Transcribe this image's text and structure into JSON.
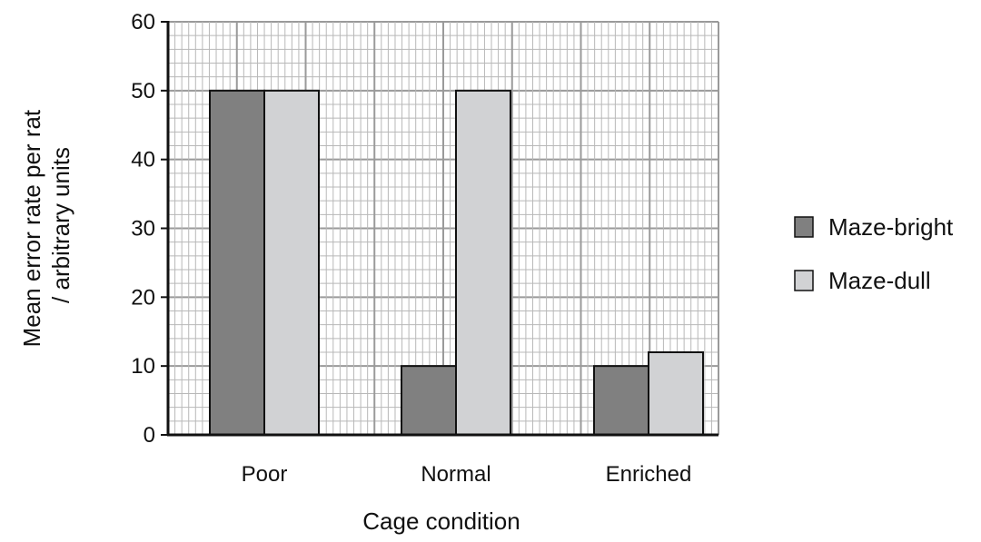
{
  "chart_data": {
    "type": "bar",
    "categories": [
      "Poor",
      "Normal",
      "Enriched"
    ],
    "series": [
      {
        "name": "Maze-bright",
        "values": [
          50,
          10,
          10
        ],
        "color": "#808080"
      },
      {
        "name": "Maze-dull",
        "values": [
          50,
          50,
          12
        ],
        "color": "#d1d2d4"
      }
    ],
    "ylim": [
      0,
      60
    ],
    "yticks": [
      0,
      10,
      20,
      30,
      40,
      50,
      60
    ],
    "xlabel": "Cage condition",
    "ylabel_lines": [
      "Mean error rate per rat",
      "/ arbitrary units"
    ],
    "grid": true,
    "legend_position": "right"
  }
}
